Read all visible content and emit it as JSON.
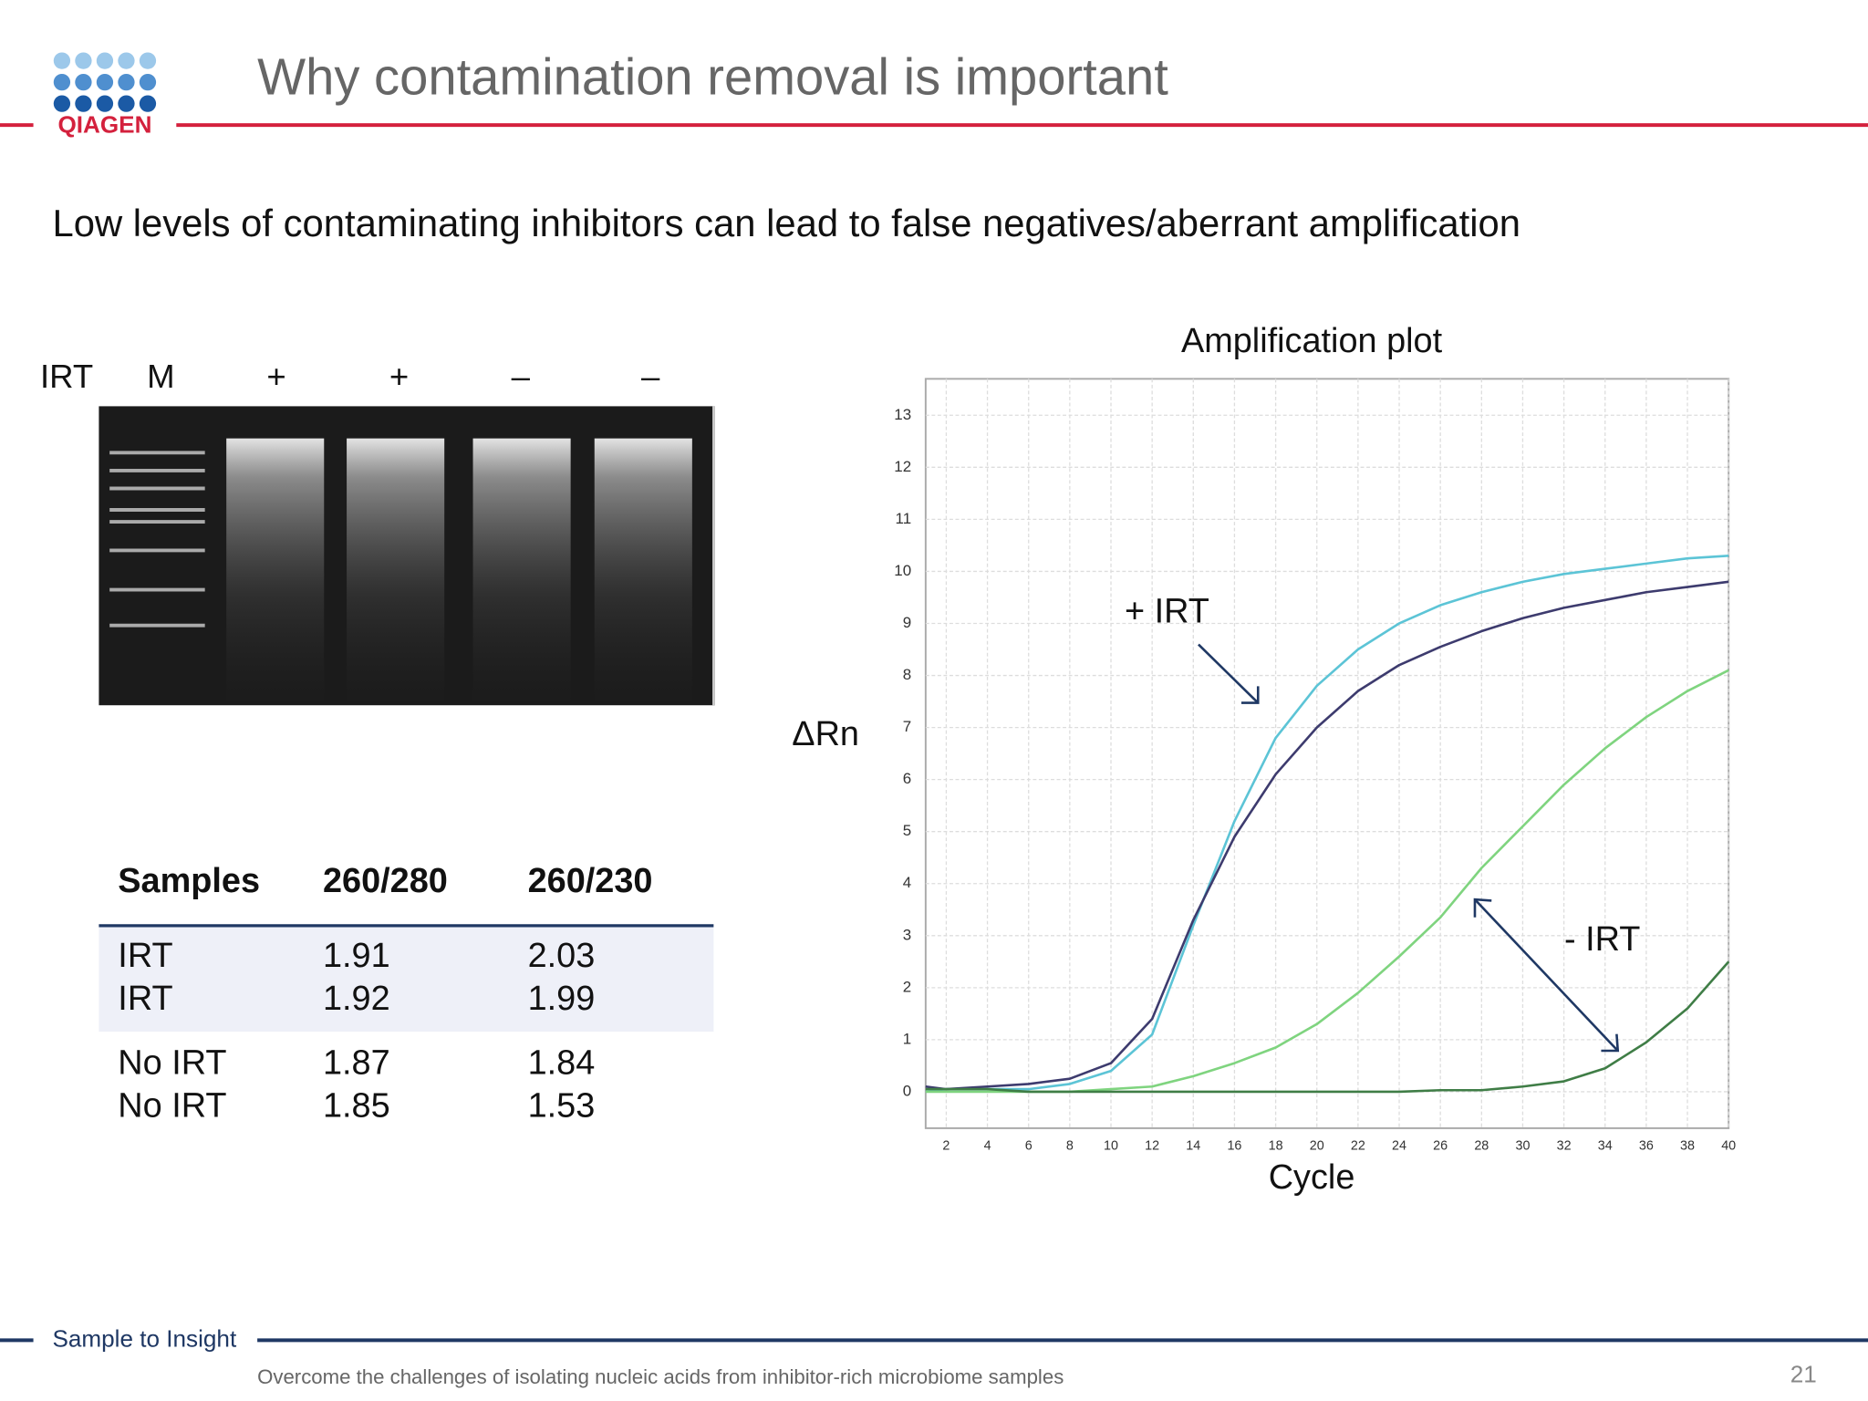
{
  "header": {
    "logo": "QIAGEN",
    "title": "Why contamination removal is important"
  },
  "subtitle": "Low levels of contaminating inhibitors can lead to false negatives/aberrant amplification",
  "gel": {
    "row_label": "IRT",
    "lanes": [
      "M",
      "+",
      "+",
      "–",
      "–"
    ]
  },
  "table": {
    "header": [
      "Samples",
      "260/280",
      "260/230"
    ],
    "rows": [
      [
        "IRT",
        "1.91",
        "2.03"
      ],
      [
        "IRT",
        "1.92",
        "1.99"
      ],
      [
        "No IRT",
        "1.87",
        "1.84"
      ],
      [
        "No IRT",
        "1.85",
        "1.53"
      ]
    ]
  },
  "chart_data": {
    "type": "line",
    "title": "Amplification plot",
    "x_label": "Cycle",
    "y_label": "ΔRn",
    "x": [
      1,
      2,
      4,
      6,
      8,
      10,
      12,
      14,
      16,
      18,
      20,
      22,
      24,
      26,
      28,
      30,
      32,
      34,
      36,
      38,
      40
    ],
    "series": [
      {
        "color": "#5cc4d6",
        "values": [
          0,
          0.05,
          0.05,
          0.05,
          0.15,
          0.4,
          1.1,
          3.2,
          5.2,
          6.8,
          7.8,
          8.5,
          9.0,
          9.35,
          9.6,
          9.8,
          9.95,
          10.05,
          10.15,
          10.25,
          10.3
        ]
      },
      {
        "color": "#3d3b6e",
        "values": [
          0.1,
          0.05,
          0.1,
          0.15,
          0.25,
          0.55,
          1.4,
          3.3,
          4.9,
          6.1,
          7.0,
          7.7,
          8.2,
          8.55,
          8.85,
          9.1,
          9.3,
          9.45,
          9.6,
          9.7,
          9.8
        ]
      },
      {
        "color": "#7fd47f",
        "values": [
          0,
          0,
          0,
          0,
          0,
          0.05,
          0.1,
          0.3,
          0.55,
          0.85,
          1.3,
          1.9,
          2.6,
          3.35,
          4.3,
          5.1,
          5.9,
          6.6,
          7.2,
          7.7,
          8.1
        ]
      },
      {
        "color": "#3f7d46",
        "values": [
          0.05,
          0.05,
          0.05,
          0,
          0,
          0,
          0,
          0,
          0,
          0,
          0,
          0,
          0,
          0.03,
          0.03,
          0.1,
          0.2,
          0.45,
          0.95,
          1.6,
          2.5
        ]
      }
    ],
    "xlim": [
      1,
      40
    ],
    "ylim": [
      -0.7,
      13.7
    ],
    "xticks": [
      2,
      4,
      6,
      8,
      10,
      12,
      14,
      16,
      18,
      20,
      22,
      24,
      26,
      28,
      30,
      32,
      34,
      36,
      38,
      40
    ],
    "yticks": [
      0,
      1,
      2,
      3,
      4,
      5,
      6,
      7,
      8,
      9,
      10,
      11,
      12,
      13
    ],
    "grid": true,
    "annotations": [
      "+ IRT",
      "- IRT"
    ]
  },
  "footer": {
    "tagline": "Sample to Insight",
    "text": "Overcome the challenges of isolating nucleic acids from inhibitor-rich microbiome samples",
    "page_number": "21"
  }
}
